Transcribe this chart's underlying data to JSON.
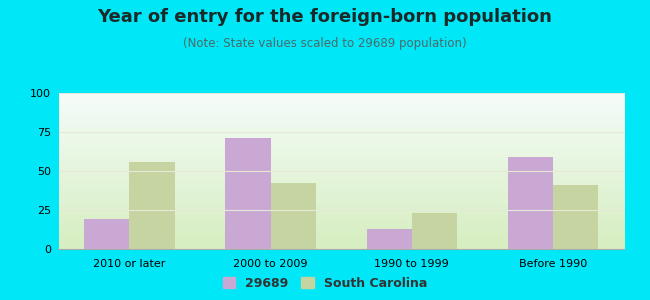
{
  "title": "Year of entry for the foreign-born population",
  "subtitle": "(Note: State values scaled to 29689 population)",
  "categories": [
    "2010 or later",
    "2000 to 2009",
    "1990 to 1999",
    "Before 1990"
  ],
  "values_29689": [
    19,
    71,
    13,
    59
  ],
  "values_sc": [
    56,
    42,
    23,
    41
  ],
  "color_29689": "#c9a8d4",
  "color_sc": "#c5d4a0",
  "background_outer": "#00e8f8",
  "background_chart_bottom": "#d6eec0",
  "background_chart_top": "#f5fcfa",
  "ylim": [
    0,
    100
  ],
  "yticks": [
    0,
    25,
    50,
    75,
    100
  ],
  "bar_width": 0.32,
  "legend_label_29689": "29689",
  "legend_label_sc": "South Carolina",
  "title_fontsize": 13,
  "subtitle_fontsize": 8.5,
  "tick_fontsize": 8,
  "legend_fontsize": 9,
  "title_color": "#1a2a2a",
  "subtitle_color": "#4a6a6a"
}
